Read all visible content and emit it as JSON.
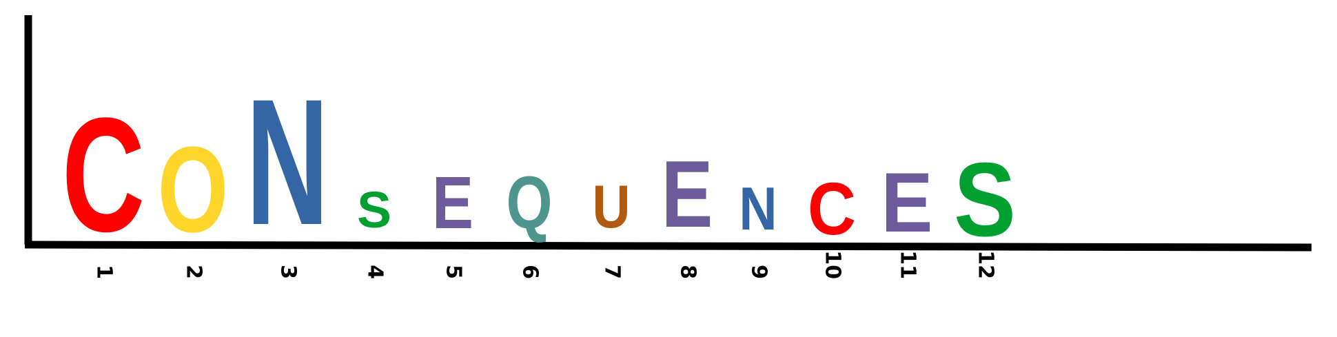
{
  "chart_data": {
    "type": "sequence-logo",
    "title": "",
    "xlabel": "",
    "ylabel": "",
    "positions": [
      "1",
      "2",
      "3",
      "4",
      "5",
      "6",
      "7",
      "8",
      "9",
      "10",
      "11",
      "12"
    ],
    "letters": [
      "C",
      "O",
      "N",
      "S",
      "E",
      "Q",
      "U",
      "E",
      "N",
      "C",
      "E",
      "S"
    ],
    "heights": [
      0.48,
      0.36,
      0.53,
      0.15,
      0.22,
      0.22,
      0.18,
      0.28,
      0.18,
      0.22,
      0.25,
      0.31
    ],
    "colors": [
      "#ff0000",
      "#ffd52b",
      "#3465a4",
      "#00a030",
      "#6c5c9c",
      "#4e958e",
      "#b05a10",
      "#6c5c9c",
      "#3465a4",
      "#ff0000",
      "#6c5c9c",
      "#00a030"
    ],
    "grid": false
  }
}
